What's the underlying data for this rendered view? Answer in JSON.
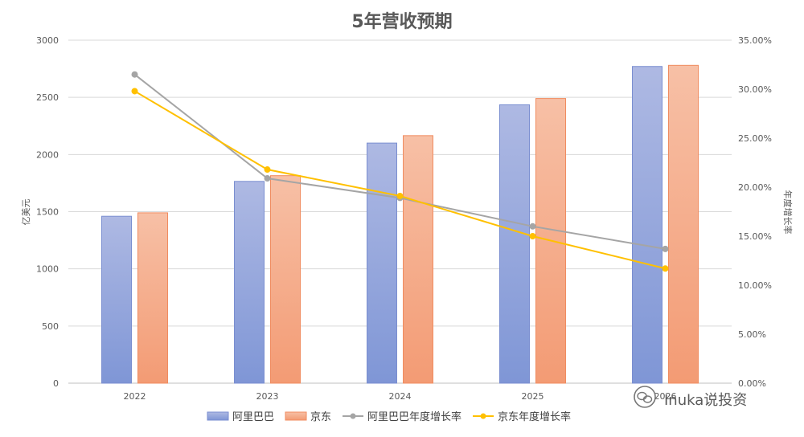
{
  "chart_data": {
    "type": "bar",
    "title": "5年营收预期",
    "categories": [
      "2022",
      "2023",
      "2024",
      "2025",
      "2026"
    ],
    "series": [
      {
        "name": "阿里巴巴",
        "kind": "bar",
        "axis": "left",
        "values": [
          1460,
          1765,
          2100,
          2435,
          2770
        ],
        "color": "#8FA2DB"
      },
      {
        "name": "京东",
        "kind": "bar",
        "axis": "left",
        "values": [
          1490,
          1815,
          2165,
          2490,
          2780
        ],
        "color": "#F4A886"
      },
      {
        "name": "阿里巴巴年度增长率",
        "kind": "line",
        "axis": "right",
        "values": [
          31.5,
          20.9,
          18.9,
          16.0,
          13.7
        ],
        "color": "#A5A5A5"
      },
      {
        "name": "京东年度增长率",
        "kind": "line",
        "axis": "right",
        "values": [
          29.8,
          21.8,
          19.1,
          15.0,
          11.7
        ],
        "color": "#FFC000"
      }
    ],
    "ylabel": "亿美元",
    "y2label": "年度增长率",
    "ylim": [
      0,
      3000
    ],
    "yticks": [
      "0",
      "500",
      "1000",
      "1500",
      "2000",
      "2500",
      "3000"
    ],
    "y2lim": [
      0,
      35
    ],
    "y2ticks": [
      "0.00%",
      "5.00%",
      "10.00%",
      "15.00%",
      "20.00%",
      "25.00%",
      "30.00%",
      "35.00%"
    ],
    "grid": true,
    "legend_position": "bottom"
  },
  "watermark": {
    "text": "Inuka说投资",
    "icon": "wechat-icon"
  }
}
